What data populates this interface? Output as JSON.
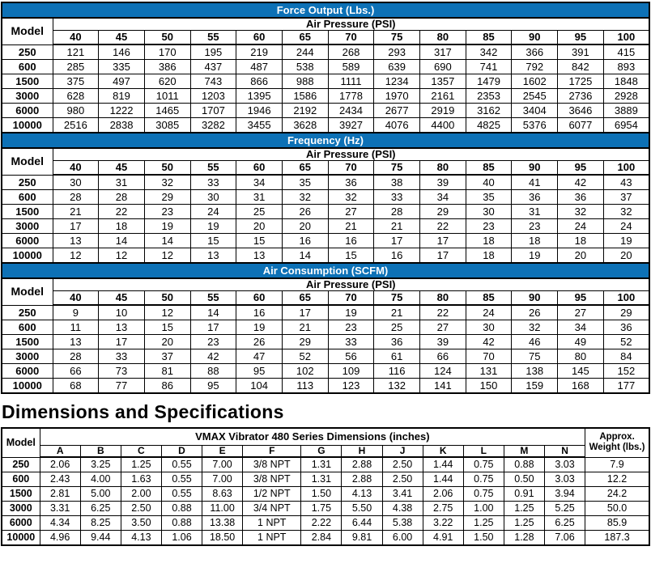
{
  "accent_color": "#0D71B6",
  "performance_tables": [
    {
      "id": "force-output",
      "title": "Force Output (Lbs.)",
      "model_header": "Model",
      "pressure_header": "Air Pressure (PSI)",
      "pressures": [
        "40",
        "45",
        "50",
        "55",
        "60",
        "65",
        "70",
        "75",
        "80",
        "85",
        "90",
        "95",
        "100"
      ],
      "rows": [
        {
          "model": "250",
          "values": [
            "121",
            "146",
            "170",
            "195",
            "219",
            "244",
            "268",
            "293",
            "317",
            "342",
            "366",
            "391",
            "415"
          ]
        },
        {
          "model": "600",
          "values": [
            "285",
            "335",
            "386",
            "437",
            "487",
            "538",
            "589",
            "639",
            "690",
            "741",
            "792",
            "842",
            "893"
          ]
        },
        {
          "model": "1500",
          "values": [
            "375",
            "497",
            "620",
            "743",
            "866",
            "988",
            "1111",
            "1234",
            "1357",
            "1479",
            "1602",
            "1725",
            "1848"
          ]
        },
        {
          "model": "3000",
          "values": [
            "628",
            "819",
            "1011",
            "1203",
            "1395",
            "1586",
            "1778",
            "1970",
            "2161",
            "2353",
            "2545",
            "2736",
            "2928"
          ]
        },
        {
          "model": "6000",
          "values": [
            "980",
            "1222",
            "1465",
            "1707",
            "1946",
            "2192",
            "2434",
            "2677",
            "2919",
            "3162",
            "3404",
            "3646",
            "3889"
          ]
        },
        {
          "model": "10000",
          "values": [
            "2516",
            "2838",
            "3085",
            "3282",
            "3455",
            "3628",
            "3927",
            "4076",
            "4400",
            "4825",
            "5376",
            "6077",
            "6954"
          ]
        }
      ]
    },
    {
      "id": "frequency",
      "title": "Frequency (Hz)",
      "model_header": "Model",
      "pressure_header": "Air Pressure (PSI)",
      "pressures": [
        "40",
        "45",
        "50",
        "55",
        "60",
        "65",
        "70",
        "75",
        "80",
        "85",
        "90",
        "95",
        "100"
      ],
      "rows": [
        {
          "model": "250",
          "values": [
            "30",
            "31",
            "32",
            "33",
            "34",
            "35",
            "36",
            "38",
            "39",
            "40",
            "41",
            "42",
            "43"
          ]
        },
        {
          "model": "600",
          "values": [
            "28",
            "28",
            "29",
            "30",
            "31",
            "32",
            "32",
            "33",
            "34",
            "35",
            "36",
            "36",
            "37"
          ]
        },
        {
          "model": "1500",
          "values": [
            "21",
            "22",
            "23",
            "24",
            "25",
            "26",
            "27",
            "28",
            "29",
            "30",
            "31",
            "32",
            "32"
          ]
        },
        {
          "model": "3000",
          "values": [
            "17",
            "18",
            "19",
            "19",
            "20",
            "20",
            "21",
            "21",
            "22",
            "23",
            "23",
            "24",
            "24"
          ]
        },
        {
          "model": "6000",
          "values": [
            "13",
            "14",
            "14",
            "15",
            "15",
            "16",
            "16",
            "17",
            "17",
            "18",
            "18",
            "18",
            "19"
          ]
        },
        {
          "model": "10000",
          "values": [
            "12",
            "12",
            "12",
            "13",
            "13",
            "14",
            "15",
            "16",
            "17",
            "18",
            "19",
            "20",
            "20"
          ]
        }
      ]
    },
    {
      "id": "air-consumption",
      "title": "Air Consumption (SCFM)",
      "model_header": "Model",
      "pressure_header": "Air Pressure (PSI)",
      "pressures": [
        "40",
        "45",
        "50",
        "55",
        "60",
        "65",
        "70",
        "75",
        "80",
        "85",
        "90",
        "95",
        "100"
      ],
      "rows": [
        {
          "model": "250",
          "values": [
            "9",
            "10",
            "12",
            "14",
            "16",
            "17",
            "19",
            "21",
            "22",
            "24",
            "26",
            "27",
            "29"
          ]
        },
        {
          "model": "600",
          "values": [
            "11",
            "13",
            "15",
            "17",
            "19",
            "21",
            "23",
            "25",
            "27",
            "30",
            "32",
            "34",
            "36"
          ]
        },
        {
          "model": "1500",
          "values": [
            "13",
            "17",
            "20",
            "23",
            "26",
            "29",
            "33",
            "36",
            "39",
            "42",
            "46",
            "49",
            "52"
          ]
        },
        {
          "model": "3000",
          "values": [
            "28",
            "33",
            "37",
            "42",
            "47",
            "52",
            "56",
            "61",
            "66",
            "70",
            "75",
            "80",
            "84"
          ]
        },
        {
          "model": "6000",
          "values": [
            "66",
            "73",
            "81",
            "88",
            "95",
            "102",
            "109",
            "116",
            "124",
            "131",
            "138",
            "145",
            "152"
          ]
        },
        {
          "model": "10000",
          "values": [
            "68",
            "77",
            "86",
            "95",
            "104",
            "113",
            "123",
            "132",
            "141",
            "150",
            "159",
            "168",
            "177"
          ]
        }
      ]
    }
  ],
  "dimensions_section": {
    "heading": "Dimensions and Specifications",
    "table": {
      "model_header": "Model",
      "span_header": "VMAX Vibrator 480 Series Dimensions (inches)",
      "weight_header": "Approx.\nWeight (lbs.)",
      "columns": [
        "A",
        "B",
        "C",
        "D",
        "E",
        "F",
        "G",
        "H",
        "J",
        "K",
        "L",
        "M",
        "N"
      ],
      "rows": [
        {
          "model": "250",
          "values": [
            "2.06",
            "3.25",
            "1.25",
            "0.55",
            "7.00",
            "3/8 NPT",
            "1.31",
            "2.88",
            "2.50",
            "1.44",
            "0.75",
            "0.88",
            "3.03"
          ],
          "weight": "7.9"
        },
        {
          "model": "600",
          "values": [
            "2.43",
            "4.00",
            "1.63",
            "0.55",
            "7.00",
            "3/8 NPT",
            "1.31",
            "2.88",
            "2.50",
            "1.44",
            "0.75",
            "0.50",
            "3.03"
          ],
          "weight": "12.2"
        },
        {
          "model": "1500",
          "values": [
            "2.81",
            "5.00",
            "2.00",
            "0.55",
            "8.63",
            "1/2 NPT",
            "1.50",
            "4.13",
            "3.41",
            "2.06",
            "0.75",
            "0.91",
            "3.94"
          ],
          "weight": "24.2"
        },
        {
          "model": "3000",
          "values": [
            "3.31",
            "6.25",
            "2.50",
            "0.88",
            "11.00",
            "3/4 NPT",
            "1.75",
            "5.50",
            "4.38",
            "2.75",
            "1.00",
            "1.25",
            "5.25"
          ],
          "weight": "50.0"
        },
        {
          "model": "6000",
          "values": [
            "4.34",
            "8.25",
            "3.50",
            "0.88",
            "13.38",
            "1 NPT",
            "2.22",
            "6.44",
            "5.38",
            "3.22",
            "1.25",
            "1.25",
            "6.25"
          ],
          "weight": "85.9"
        },
        {
          "model": "10000",
          "values": [
            "4.96",
            "9.44",
            "4.13",
            "1.06",
            "18.50",
            "1 NPT",
            "2.84",
            "9.81",
            "6.00",
            "4.91",
            "1.50",
            "1.28",
            "7.06"
          ],
          "weight": "187.3"
        }
      ]
    }
  }
}
